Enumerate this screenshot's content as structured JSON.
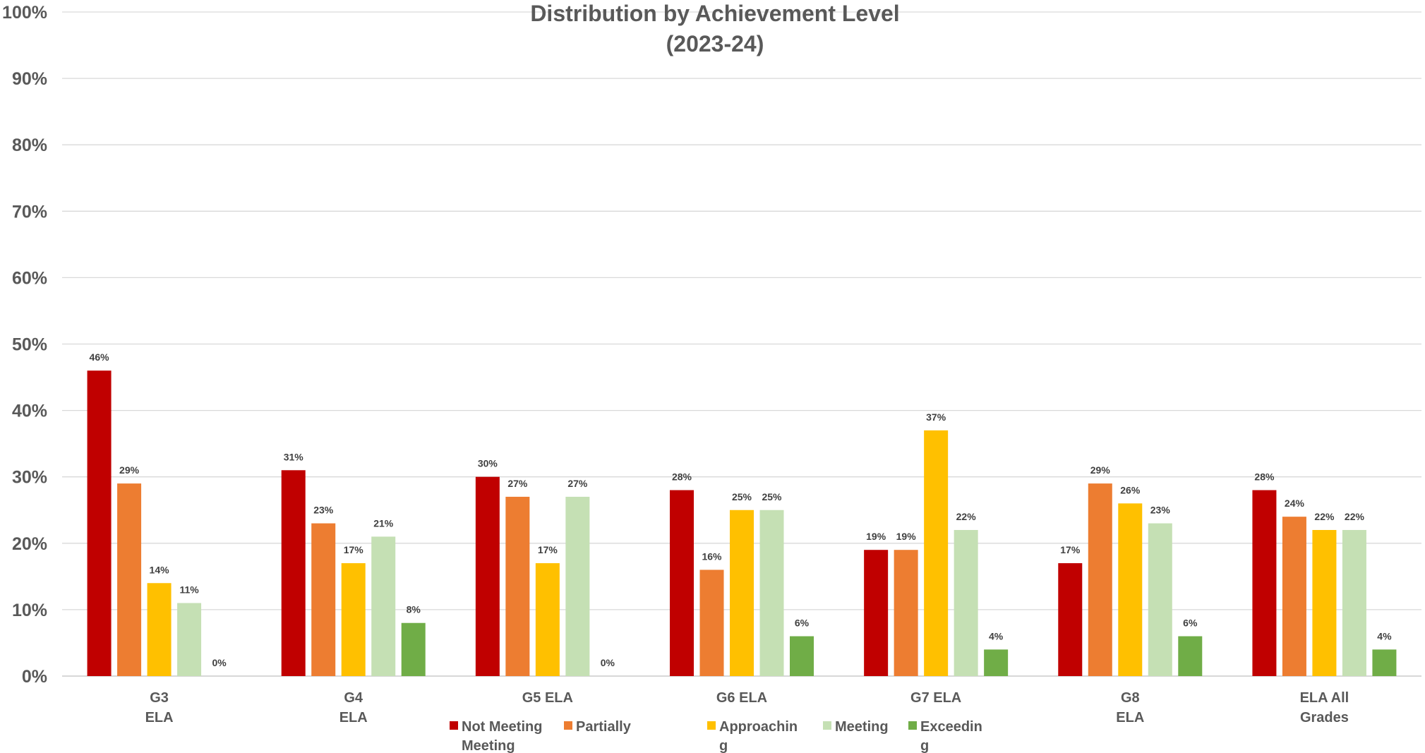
{
  "chart_data": {
    "type": "bar",
    "title": "Distribution by Achievement Level",
    "subtitle": "(2023-24)",
    "xlabel": "",
    "ylabel": "",
    "ylim": [
      0,
      100
    ],
    "y_ticks": [
      "0%",
      "10%",
      "20%",
      "30%",
      "40%",
      "50%",
      "60%",
      "70%",
      "80%",
      "90%",
      "100%"
    ],
    "grid": true,
    "legend_position": "bottom",
    "categories": [
      [
        "G3",
        "ELA"
      ],
      [
        "G4",
        "ELA"
      ],
      [
        "G5 ELA"
      ],
      [
        "G6 ELA"
      ],
      [
        "G7 ELA"
      ],
      [
        "G8",
        "ELA"
      ],
      [
        "ELA All",
        "Grades"
      ]
    ],
    "series": [
      {
        "name": "Not Meeting Meeting",
        "legend_lines": [
          "Not Meeting",
          "Meeting"
        ],
        "color": "#C00000",
        "values": [
          46,
          31,
          30,
          28,
          19,
          17,
          28
        ],
        "labels": [
          "46%",
          "31%",
          "30%",
          "28%",
          "19%",
          "17%",
          "28%"
        ]
      },
      {
        "name": "Partially",
        "legend_lines": [
          "Partially"
        ],
        "color": "#ED7D31",
        "values": [
          29,
          23,
          27,
          16,
          19,
          29,
          24
        ],
        "labels": [
          "29%",
          "23%",
          "27%",
          "16%",
          "19%",
          "29%",
          "24%"
        ]
      },
      {
        "name": "Approaching",
        "legend_lines": [
          "Approachin",
          "g"
        ],
        "color": "#FFC000",
        "values": [
          14,
          17,
          17,
          25,
          37,
          26,
          22
        ],
        "labels": [
          "14%",
          "17%",
          "17%",
          "25%",
          "37%",
          "26%",
          "22%"
        ]
      },
      {
        "name": "Meeting",
        "legend_lines": [
          "Meeting"
        ],
        "color": "#C5E0B4",
        "values": [
          11,
          21,
          27,
          25,
          22,
          23,
          22
        ],
        "labels": [
          "11%",
          "21%",
          "27%",
          "25%",
          "22%",
          "23%",
          "22%"
        ]
      },
      {
        "name": "Exceeding",
        "legend_lines": [
          "Exceedin",
          "g"
        ],
        "color": "#70AD47",
        "values": [
          0,
          8,
          0,
          6,
          4,
          6,
          4
        ],
        "labels": [
          "0%",
          "8%",
          "0%",
          "6%",
          "4%",
          "6%",
          "4%"
        ]
      }
    ]
  }
}
